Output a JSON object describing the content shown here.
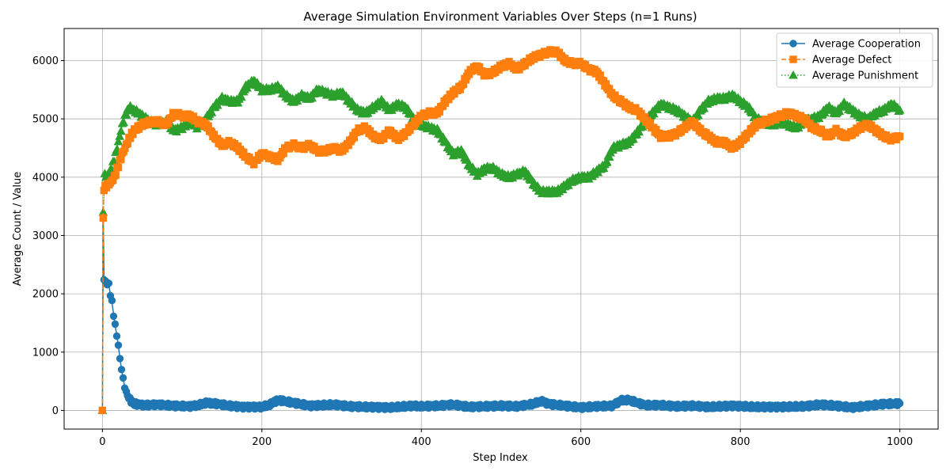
{
  "chart_data": {
    "type": "line",
    "title": "Average Simulation Environment Variables Over Steps (n=1 Runs)",
    "xlabel": "Step Index",
    "ylabel": "Average Count / Value",
    "xlim": [
      -48,
      1048
    ],
    "ylim": [
      -320,
      6550
    ],
    "xticks": [
      0,
      200,
      400,
      600,
      800,
      1000
    ],
    "yticks": [
      0,
      1000,
      2000,
      3000,
      4000,
      5000,
      6000
    ],
    "grid": true,
    "legend_position": "top-right",
    "series": [
      {
        "name": "Average Cooperation",
        "color": "#1f77b4",
        "marker": "circle",
        "linestyle": "solid",
        "points": [
          [
            0,
            0
          ],
          [
            1,
            3300
          ],
          [
            2,
            2250
          ],
          [
            4,
            2200
          ],
          [
            6,
            2180
          ],
          [
            8,
            2150
          ],
          [
            10,
            2000
          ],
          [
            12,
            1850
          ],
          [
            14,
            1650
          ],
          [
            16,
            1450
          ],
          [
            18,
            1300
          ],
          [
            20,
            1100
          ],
          [
            22,
            900
          ],
          [
            24,
            700
          ],
          [
            26,
            550
          ],
          [
            28,
            400
          ],
          [
            30,
            300
          ],
          [
            33,
            220
          ],
          [
            36,
            160
          ],
          [
            40,
            120
          ],
          [
            45,
            100
          ],
          [
            55,
            90
          ],
          [
            70,
            100
          ],
          [
            90,
            80
          ],
          [
            110,
            70
          ],
          [
            120,
            90
          ],
          [
            130,
            130
          ],
          [
            140,
            120
          ],
          [
            160,
            80
          ],
          [
            175,
            60
          ],
          [
            200,
            60
          ],
          [
            210,
            100
          ],
          [
            220,
            180
          ],
          [
            240,
            130
          ],
          [
            260,
            80
          ],
          [
            290,
            100
          ],
          [
            310,
            70
          ],
          [
            330,
            60
          ],
          [
            360,
            50
          ],
          [
            390,
            80
          ],
          [
            400,
            70
          ],
          [
            420,
            80
          ],
          [
            440,
            100
          ],
          [
            460,
            60
          ],
          [
            480,
            70
          ],
          [
            500,
            80
          ],
          [
            520,
            70
          ],
          [
            540,
            110
          ],
          [
            550,
            160
          ],
          [
            560,
            110
          ],
          [
            580,
            80
          ],
          [
            600,
            50
          ],
          [
            620,
            70
          ],
          [
            640,
            80
          ],
          [
            650,
            170
          ],
          [
            660,
            180
          ],
          [
            680,
            90
          ],
          [
            700,
            90
          ],
          [
            720,
            70
          ],
          [
            740,
            80
          ],
          [
            760,
            60
          ],
          [
            790,
            80
          ],
          [
            820,
            60
          ],
          [
            850,
            60
          ],
          [
            880,
            70
          ],
          [
            900,
            100
          ],
          [
            920,
            80
          ],
          [
            940,
            50
          ],
          [
            960,
            80
          ],
          [
            980,
            110
          ],
          [
            1000,
            120
          ]
        ]
      },
      {
        "name": "Average Defect",
        "color": "#ff7f0e",
        "marker": "square",
        "linestyle": "dashed",
        "points": [
          [
            0,
            0
          ],
          [
            1,
            3300
          ],
          [
            2,
            3800
          ],
          [
            5,
            3850
          ],
          [
            10,
            3900
          ],
          [
            15,
            4000
          ],
          [
            20,
            4200
          ],
          [
            25,
            4400
          ],
          [
            30,
            4550
          ],
          [
            35,
            4700
          ],
          [
            40,
            4800
          ],
          [
            50,
            4900
          ],
          [
            60,
            4950
          ],
          [
            70,
            4950
          ],
          [
            80,
            4900
          ],
          [
            90,
            5100
          ],
          [
            100,
            5050
          ],
          [
            110,
            5050
          ],
          [
            120,
            4950
          ],
          [
            130,
            4900
          ],
          [
            140,
            4700
          ],
          [
            150,
            4550
          ],
          [
            160,
            4600
          ],
          [
            170,
            4500
          ],
          [
            180,
            4350
          ],
          [
            190,
            4250
          ],
          [
            200,
            4400
          ],
          [
            210,
            4350
          ],
          [
            220,
            4300
          ],
          [
            230,
            4500
          ],
          [
            240,
            4550
          ],
          [
            250,
            4500
          ],
          [
            260,
            4550
          ],
          [
            270,
            4450
          ],
          [
            280,
            4450
          ],
          [
            290,
            4500
          ],
          [
            300,
            4450
          ],
          [
            310,
            4600
          ],
          [
            320,
            4800
          ],
          [
            330,
            4850
          ],
          [
            340,
            4700
          ],
          [
            350,
            4650
          ],
          [
            360,
            4800
          ],
          [
            370,
            4650
          ],
          [
            380,
            4750
          ],
          [
            390,
            4900
          ],
          [
            400,
            5050
          ],
          [
            410,
            5100
          ],
          [
            420,
            5100
          ],
          [
            430,
            5300
          ],
          [
            440,
            5450
          ],
          [
            450,
            5550
          ],
          [
            460,
            5800
          ],
          [
            470,
            5900
          ],
          [
            480,
            5750
          ],
          [
            490,
            5800
          ],
          [
            500,
            5900
          ],
          [
            510,
            5950
          ],
          [
            520,
            5850
          ],
          [
            530,
            5950
          ],
          [
            540,
            6050
          ],
          [
            550,
            6100
          ],
          [
            560,
            6150
          ],
          [
            570,
            6150
          ],
          [
            580,
            6000
          ],
          [
            590,
            5950
          ],
          [
            600,
            5950
          ],
          [
            610,
            5850
          ],
          [
            620,
            5800
          ],
          [
            630,
            5600
          ],
          [
            640,
            5400
          ],
          [
            650,
            5300
          ],
          [
            660,
            5200
          ],
          [
            670,
            5150
          ],
          [
            680,
            5000
          ],
          [
            690,
            4850
          ],
          [
            700,
            4700
          ],
          [
            710,
            4700
          ],
          [
            720,
            4750
          ],
          [
            730,
            4850
          ],
          [
            740,
            4950
          ],
          [
            750,
            4800
          ],
          [
            760,
            4700
          ],
          [
            770,
            4600
          ],
          [
            780,
            4600
          ],
          [
            790,
            4500
          ],
          [
            800,
            4600
          ],
          [
            810,
            4750
          ],
          [
            820,
            4900
          ],
          [
            830,
            4950
          ],
          [
            840,
            5000
          ],
          [
            850,
            5050
          ],
          [
            860,
            5100
          ],
          [
            870,
            5050
          ],
          [
            880,
            5000
          ],
          [
            890,
            4850
          ],
          [
            900,
            4800
          ],
          [
            910,
            4700
          ],
          [
            920,
            4800
          ],
          [
            930,
            4700
          ],
          [
            940,
            4750
          ],
          [
            950,
            4850
          ],
          [
            960,
            4900
          ],
          [
            970,
            4800
          ],
          [
            980,
            4700
          ],
          [
            990,
            4650
          ],
          [
            1000,
            4700
          ]
        ]
      },
      {
        "name": "Average Punishment",
        "color": "#2ca02c",
        "marker": "triangle",
        "linestyle": "dotted",
        "points": [
          [
            0,
            0
          ],
          [
            1,
            3400
          ],
          [
            3,
            4050
          ],
          [
            6,
            4000
          ],
          [
            10,
            4100
          ],
          [
            15,
            4300
          ],
          [
            20,
            4600
          ],
          [
            25,
            4900
          ],
          [
            30,
            5100
          ],
          [
            35,
            5200
          ],
          [
            40,
            5150
          ],
          [
            50,
            5050
          ],
          [
            60,
            4950
          ],
          [
            70,
            4900
          ],
          [
            80,
            4950
          ],
          [
            90,
            4800
          ],
          [
            100,
            4850
          ],
          [
            110,
            4950
          ],
          [
            120,
            4850
          ],
          [
            130,
            5000
          ],
          [
            140,
            5200
          ],
          [
            150,
            5350
          ],
          [
            160,
            5300
          ],
          [
            170,
            5300
          ],
          [
            180,
            5550
          ],
          [
            190,
            5650
          ],
          [
            200,
            5500
          ],
          [
            210,
            5500
          ],
          [
            220,
            5550
          ],
          [
            230,
            5400
          ],
          [
            240,
            5300
          ],
          [
            250,
            5400
          ],
          [
            260,
            5350
          ],
          [
            270,
            5500
          ],
          [
            280,
            5450
          ],
          [
            290,
            5400
          ],
          [
            300,
            5450
          ],
          [
            310,
            5300
          ],
          [
            320,
            5150
          ],
          [
            330,
            5100
          ],
          [
            340,
            5200
          ],
          [
            350,
            5300
          ],
          [
            360,
            5150
          ],
          [
            370,
            5250
          ],
          [
            380,
            5200
          ],
          [
            390,
            5000
          ],
          [
            400,
            4900
          ],
          [
            410,
            4850
          ],
          [
            420,
            4800
          ],
          [
            430,
            4600
          ],
          [
            440,
            4400
          ],
          [
            450,
            4450
          ],
          [
            460,
            4200
          ],
          [
            470,
            4050
          ],
          [
            480,
            4150
          ],
          [
            490,
            4150
          ],
          [
            500,
            4050
          ],
          [
            510,
            4000
          ],
          [
            520,
            4050
          ],
          [
            530,
            4100
          ],
          [
            540,
            3900
          ],
          [
            550,
            3750
          ],
          [
            560,
            3750
          ],
          [
            570,
            3750
          ],
          [
            580,
            3850
          ],
          [
            590,
            3950
          ],
          [
            600,
            4000
          ],
          [
            610,
            4000
          ],
          [
            620,
            4100
          ],
          [
            630,
            4200
          ],
          [
            640,
            4500
          ],
          [
            650,
            4550
          ],
          [
            660,
            4600
          ],
          [
            670,
            4750
          ],
          [
            680,
            4950
          ],
          [
            690,
            5100
          ],
          [
            700,
            5250
          ],
          [
            710,
            5200
          ],
          [
            720,
            5150
          ],
          [
            730,
            5050
          ],
          [
            740,
            4950
          ],
          [
            750,
            5150
          ],
          [
            760,
            5300
          ],
          [
            770,
            5350
          ],
          [
            780,
            5350
          ],
          [
            790,
            5400
          ],
          [
            800,
            5300
          ],
          [
            810,
            5200
          ],
          [
            820,
            5000
          ],
          [
            830,
            4950
          ],
          [
            840,
            4900
          ],
          [
            850,
            4950
          ],
          [
            860,
            4900
          ],
          [
            870,
            4850
          ],
          [
            880,
            4950
          ],
          [
            890,
            5000
          ],
          [
            900,
            5050
          ],
          [
            910,
            5200
          ],
          [
            920,
            5100
          ],
          [
            930,
            5250
          ],
          [
            940,
            5150
          ],
          [
            950,
            5050
          ],
          [
            960,
            5000
          ],
          [
            970,
            5100
          ],
          [
            980,
            5150
          ],
          [
            990,
            5250
          ],
          [
            1000,
            5150
          ]
        ]
      }
    ]
  }
}
